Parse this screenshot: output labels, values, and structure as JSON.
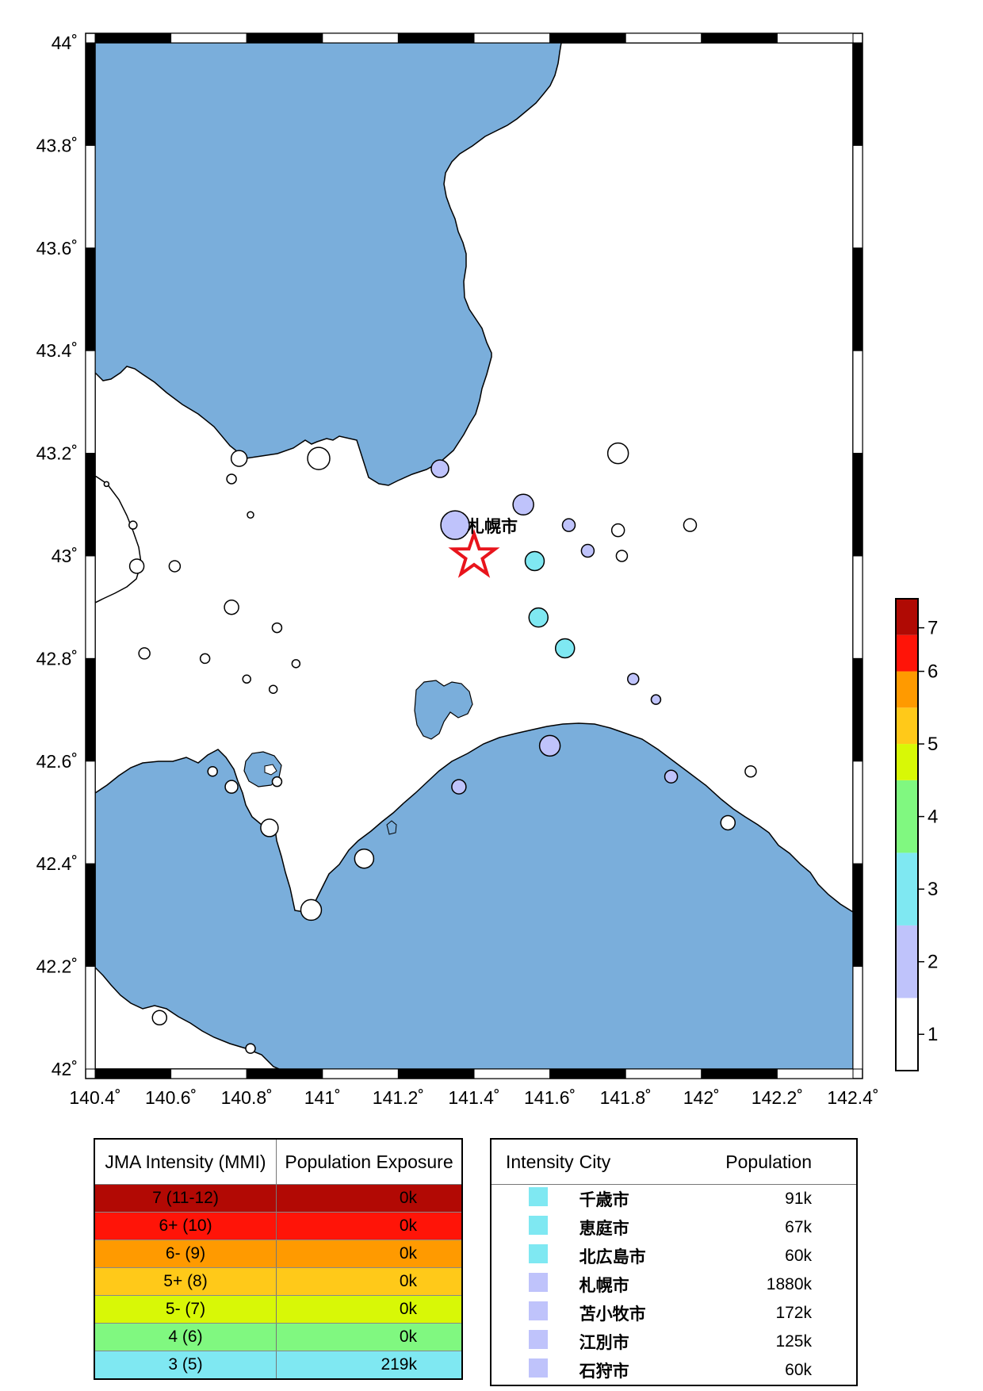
{
  "map": {
    "lon_range": [
      140.4,
      142.4
    ],
    "lat_range": [
      42.0,
      44.0
    ],
    "x_ticks": [
      "140.4˚",
      "140.6˚",
      "140.8˚",
      "141˚",
      "141.2˚",
      "141.4˚",
      "141.6˚",
      "141.8˚",
      "142˚",
      "142.2˚",
      "142.4˚"
    ],
    "y_ticks": [
      "42˚",
      "42.2˚",
      "42.4˚",
      "42.6˚",
      "42.8˚",
      "43˚",
      "43.2˚",
      "43.4˚",
      "43.6˚",
      "43.8˚",
      "44˚"
    ],
    "ocean_color": "#7aaedb",
    "land_color": "#ffffff",
    "epicenter": {
      "lon": 141.4,
      "lat": 43.0,
      "label": "札幌市",
      "color": "#e8141c"
    },
    "stations": [
      {
        "lon": 140.78,
        "lat": 43.19,
        "r": 10,
        "i": 1
      },
      {
        "lon": 140.99,
        "lat": 43.19,
        "r": 14,
        "i": 1
      },
      {
        "lon": 140.76,
        "lat": 43.15,
        "r": 6,
        "i": 1
      },
      {
        "lon": 140.81,
        "lat": 43.08,
        "r": 4,
        "i": 1
      },
      {
        "lon": 140.43,
        "lat": 43.14,
        "r": 3,
        "i": 1
      },
      {
        "lon": 140.5,
        "lat": 43.06,
        "r": 5,
        "i": 1
      },
      {
        "lon": 140.51,
        "lat": 42.98,
        "r": 9,
        "i": 1
      },
      {
        "lon": 140.61,
        "lat": 42.98,
        "r": 7,
        "i": 1
      },
      {
        "lon": 141.31,
        "lat": 43.17,
        "r": 11,
        "i": 2
      },
      {
        "lon": 141.35,
        "lat": 43.06,
        "r": 18,
        "i": 2
      },
      {
        "lon": 141.53,
        "lat": 43.1,
        "r": 13,
        "i": 2
      },
      {
        "lon": 141.65,
        "lat": 43.06,
        "r": 8,
        "i": 2
      },
      {
        "lon": 141.78,
        "lat": 43.2,
        "r": 13,
        "i": 1
      },
      {
        "lon": 141.78,
        "lat": 43.05,
        "r": 8,
        "i": 1
      },
      {
        "lon": 141.97,
        "lat": 43.06,
        "r": 8,
        "i": 1
      },
      {
        "lon": 141.79,
        "lat": 43.0,
        "r": 7,
        "i": 1
      },
      {
        "lon": 141.7,
        "lat": 43.01,
        "r": 8,
        "i": 2
      },
      {
        "lon": 141.56,
        "lat": 42.99,
        "r": 12,
        "i": 3
      },
      {
        "lon": 141.57,
        "lat": 42.88,
        "r": 12,
        "i": 3
      },
      {
        "lon": 141.64,
        "lat": 42.82,
        "r": 12,
        "i": 3
      },
      {
        "lon": 140.76,
        "lat": 42.9,
        "r": 9,
        "i": 1
      },
      {
        "lon": 140.88,
        "lat": 42.86,
        "r": 6,
        "i": 1
      },
      {
        "lon": 140.53,
        "lat": 42.81,
        "r": 7,
        "i": 1
      },
      {
        "lon": 140.69,
        "lat": 42.8,
        "r": 6,
        "i": 1
      },
      {
        "lon": 140.93,
        "lat": 42.79,
        "r": 5,
        "i": 1
      },
      {
        "lon": 140.8,
        "lat": 42.76,
        "r": 5,
        "i": 1
      },
      {
        "lon": 140.87,
        "lat": 42.74,
        "r": 5,
        "i": 1
      },
      {
        "lon": 141.82,
        "lat": 42.76,
        "r": 7,
        "i": 2
      },
      {
        "lon": 141.88,
        "lat": 42.72,
        "r": 6,
        "i": 2
      },
      {
        "lon": 141.6,
        "lat": 42.63,
        "r": 13,
        "i": 2
      },
      {
        "lon": 140.71,
        "lat": 42.58,
        "r": 6,
        "i": 1
      },
      {
        "lon": 140.76,
        "lat": 42.55,
        "r": 8,
        "i": 1
      },
      {
        "lon": 140.88,
        "lat": 42.56,
        "r": 6,
        "i": 1
      },
      {
        "lon": 141.36,
        "lat": 42.55,
        "r": 9,
        "i": 2
      },
      {
        "lon": 141.92,
        "lat": 42.57,
        "r": 8,
        "i": 2
      },
      {
        "lon": 142.13,
        "lat": 42.58,
        "r": 7,
        "i": 1
      },
      {
        "lon": 142.07,
        "lat": 42.48,
        "r": 9,
        "i": 1
      },
      {
        "lon": 140.86,
        "lat": 42.47,
        "r": 11,
        "i": 1
      },
      {
        "lon": 141.11,
        "lat": 42.41,
        "r": 12,
        "i": 1
      },
      {
        "lon": 140.97,
        "lat": 42.31,
        "r": 13,
        "i": 1
      },
      {
        "lon": 140.57,
        "lat": 42.1,
        "r": 9,
        "i": 1
      },
      {
        "lon": 140.81,
        "lat": 42.04,
        "r": 6,
        "i": 1
      }
    ]
  },
  "intensity_colors": {
    "1": "#ffffff",
    "2": "#bfc3fb",
    "3": "#7fe8f2",
    "4": "#80f880",
    "5": "#d8f806",
    "6": "#ff1408",
    "7": "#b00a04"
  },
  "colorbar": {
    "labels": [
      "1",
      "2",
      "3",
      "4",
      "5",
      "6",
      "7"
    ],
    "bands": [
      "#ffffff",
      "#bfc3fb",
      "#7fe8f2",
      "#80f880",
      "#d8f806",
      "#ffc919",
      "#ff9a00",
      "#ff1408",
      "#b00a04"
    ]
  },
  "exposure_table": {
    "header_intensity": "JMA Intensity (MMI)",
    "header_population": "Population Exposure",
    "rows": [
      {
        "level": "7 (11-12)",
        "population": "0k",
        "color": "#b20904"
      },
      {
        "level": "6+ (10)",
        "population": "0k",
        "color": "#ff1408"
      },
      {
        "level": "6- (9)",
        "population": "0k",
        "color": "#ff9a00"
      },
      {
        "level": "5+ (8)",
        "population": "0k",
        "color": "#ffc919"
      },
      {
        "level": "5- (7)",
        "population": "0k",
        "color": "#d8f806"
      },
      {
        "level": "4 (6)",
        "population": "0k",
        "color": "#80f880"
      },
      {
        "level": "3 (5)",
        "population": "219k",
        "color": "#7fe8f2"
      }
    ]
  },
  "city_table": {
    "header_intensity": "Intensity",
    "header_city": "City",
    "header_population": "Population",
    "rows": [
      {
        "city": "千歳市",
        "population": "91k",
        "color": "#7fe8f2"
      },
      {
        "city": "恵庭市",
        "population": "67k",
        "color": "#7fe8f2"
      },
      {
        "city": "北広島市",
        "population": "60k",
        "color": "#7fe8f2"
      },
      {
        "city": "札幌市",
        "population": "1880k",
        "color": "#bfc3fb"
      },
      {
        "city": "苫小牧市",
        "population": "172k",
        "color": "#bfc3fb"
      },
      {
        "city": "江別市",
        "population": "125k",
        "color": "#bfc3fb"
      },
      {
        "city": "石狩市",
        "population": "60k",
        "color": "#bfc3fb"
      }
    ]
  }
}
